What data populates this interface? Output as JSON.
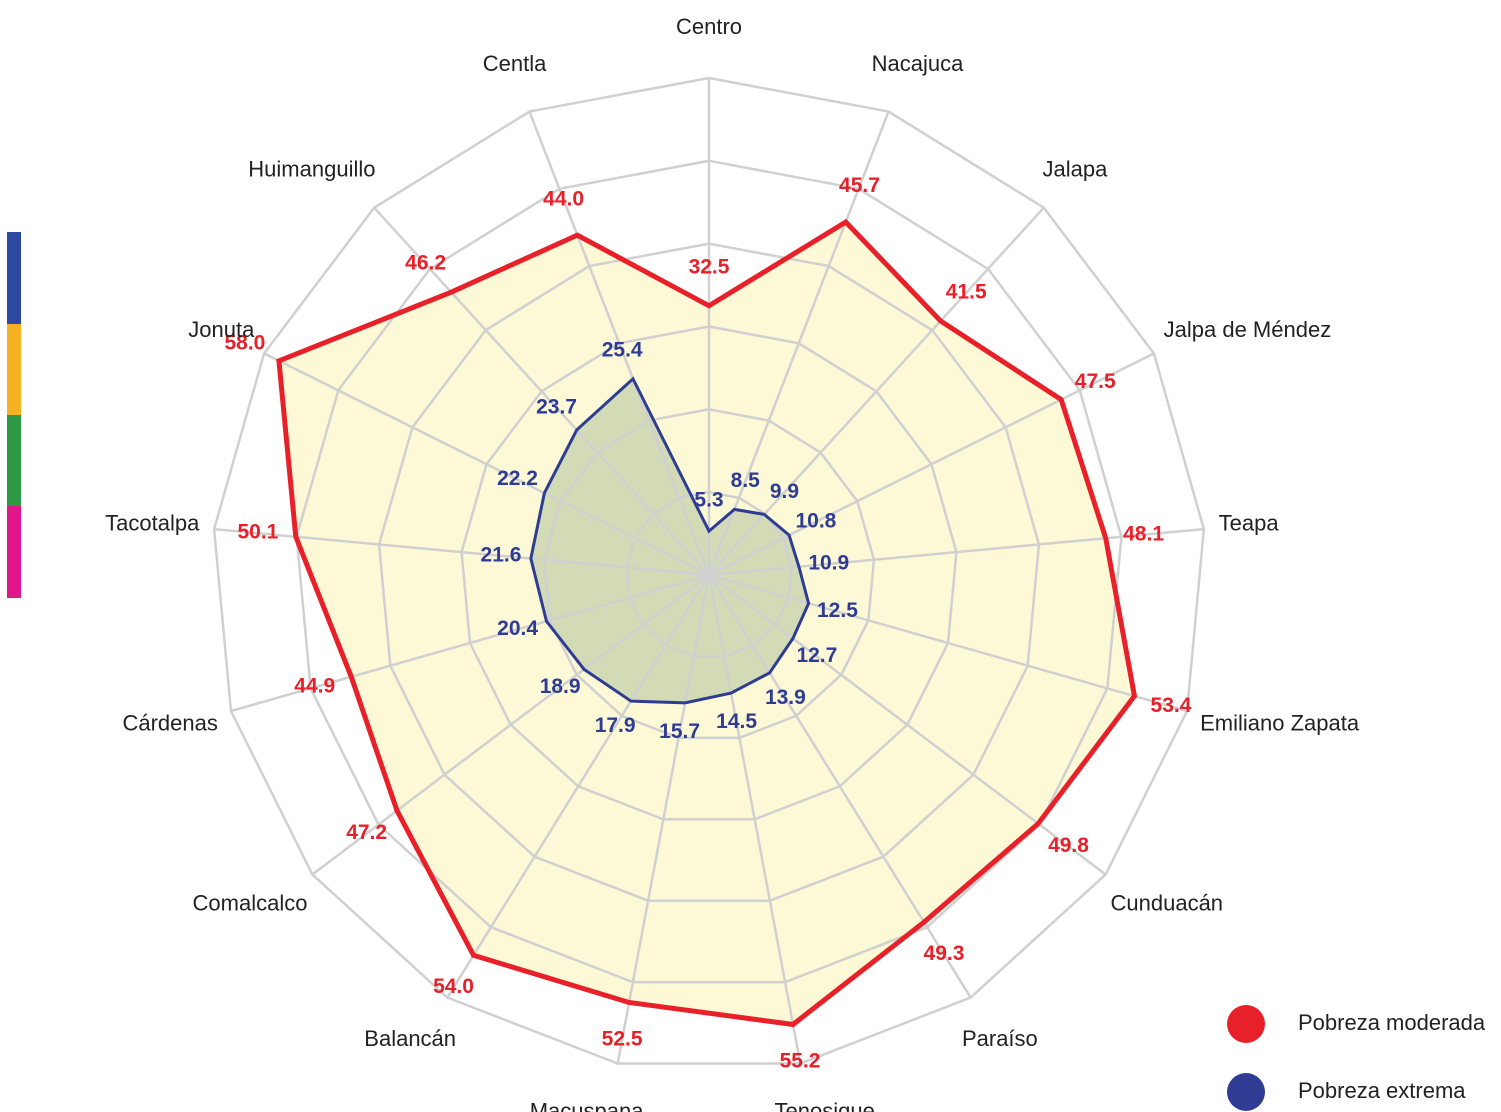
{
  "chart_data": {
    "type": "radar",
    "categories": [
      "Centro",
      "Nacajuca",
      "Jalapa",
      "Jalpa de Méndez",
      "Teapa",
      "Emiliano Zapata",
      "Cunduacán",
      "Paraíso",
      "Tenosique",
      "Macuspana",
      "Balancán",
      "Comalcalco",
      "Cárdenas",
      "Tacotalpa",
      "Jonuta",
      "Huimanguillo",
      "Centla"
    ],
    "series": [
      {
        "name": "Pobreza moderada",
        "color": "#e8202a",
        "fill": "#fdf9d6",
        "values": [
          32.5,
          45.7,
          41.5,
          47.5,
          48.1,
          53.4,
          49.8,
          49.3,
          55.2,
          52.5,
          54.0,
          47.2,
          44.9,
          50.1,
          58.0,
          46.2,
          44.0
        ],
        "value_labels": [
          "32.5",
          "45.7",
          "41.5",
          "47.5",
          "48.1",
          "53.4",
          "49.8",
          "49.3",
          "55.2",
          "52.5",
          "54.0",
          "47.2",
          "44.9",
          "50.1",
          "58.0",
          "46.2",
          "44.0"
        ]
      },
      {
        "name": "Pobreza extrema",
        "color": "#2e3c93",
        "fill": "#d2dbb5",
        "values": [
          5.3,
          8.5,
          9.9,
          10.8,
          10.9,
          12.5,
          12.7,
          13.9,
          14.5,
          15.7,
          17.9,
          18.9,
          20.4,
          21.6,
          22.2,
          23.7,
          25.4
        ],
        "value_labels": [
          "5.3",
          "8.5",
          "9.9",
          "10.8",
          "10.9",
          "12.5",
          "12.7",
          "13.9",
          "14.5",
          "15.7",
          "17.9",
          "18.9",
          "20.4",
          "21.6",
          "22.2",
          "23.7",
          "25.4"
        ]
      }
    ],
    "ylim": [
      0,
      60
    ],
    "yticks": [
      10,
      20,
      30,
      40,
      50,
      60
    ],
    "grid": true,
    "legend": "lower right"
  }
}
